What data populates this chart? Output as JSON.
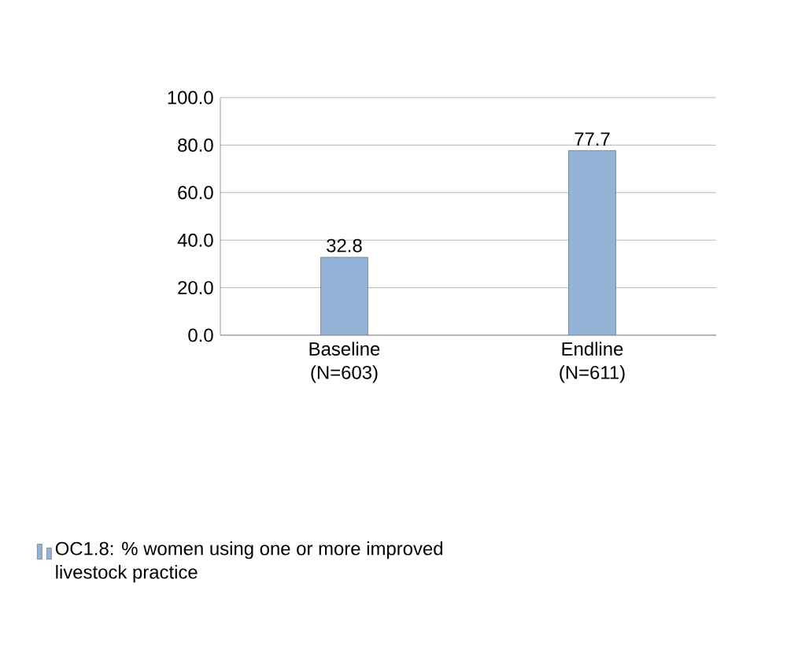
{
  "chart_data": {
    "type": "bar",
    "categories": [
      "Baseline (N=603)",
      "Endline (N=611)"
    ],
    "series": [
      {
        "name": "OC1.8: % women using one or more improved livestock practice",
        "color": "#95b3d7",
        "values": [
          32.8,
          77.7
        ]
      }
    ],
    "ylim": [
      0,
      100
    ],
    "yticks": [
      {
        "value": 0,
        "label": "0.0"
      },
      {
        "value": 20,
        "label": "20.0"
      },
      {
        "value": 40,
        "label": "40.0"
      },
      {
        "value": 60,
        "label": "60.0"
      },
      {
        "value": 80,
        "label": "80.0"
      },
      {
        "value": 100,
        "label": "100.0"
      }
    ],
    "grid": "y",
    "legend": "bottom",
    "data_labels": true
  }
}
